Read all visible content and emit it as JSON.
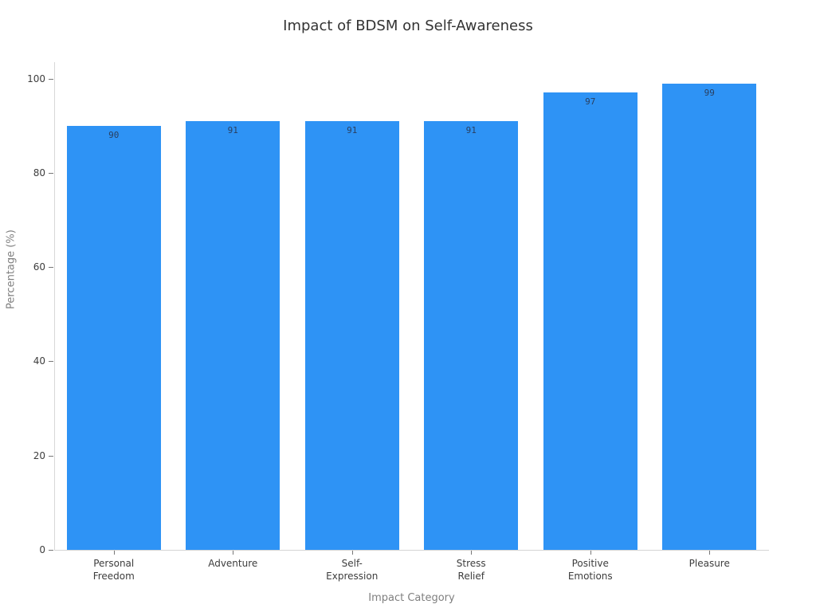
{
  "title": "Impact of BDSM on Self-Awareness",
  "chart_data": {
    "type": "bar",
    "title": "Impact of BDSM on Self-Awareness",
    "xlabel": "Impact Category",
    "ylabel": "Percentage (%)",
    "categories": [
      "Personal Freedom",
      "Adventure",
      "Self-Expression",
      "Stress Relief",
      "Positive Emotions",
      "Pleasure"
    ],
    "category_label_lines": [
      [
        "Personal",
        "Freedom"
      ],
      [
        "Adventure"
      ],
      [
        "Self-",
        "Expression"
      ],
      [
        "Stress",
        "Relief"
      ],
      [
        "Positive",
        "Emotions"
      ],
      [
        "Pleasure"
      ]
    ],
    "values": [
      90,
      91,
      91,
      91,
      97,
      99
    ],
    "bar_value_labels": [
      "90",
      "91",
      "91",
      "91",
      "97",
      "99"
    ],
    "yticks": [
      0,
      20,
      40,
      60,
      80,
      100
    ],
    "ylim": [
      0,
      103.5
    ],
    "grid": false,
    "legend": null,
    "bar_color": "#2E93F5",
    "value_label_color": "#2a3f5f",
    "axis_line_color": "#d8d8d8",
    "tick_label_color": "#3d3d3d",
    "axis_title_color": "#7f7f7f",
    "title_color": "#333333",
    "background_color": "#ffffff"
  }
}
